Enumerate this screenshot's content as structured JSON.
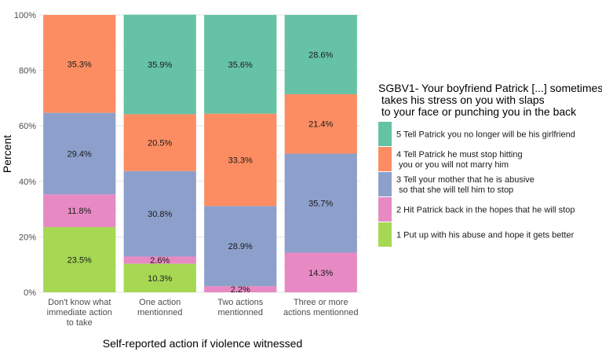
{
  "chart_data": {
    "type": "bar",
    "stacked": true,
    "ylabel": "Percent",
    "xlabel": "Self-reported action if violence witnessed",
    "ylim": [
      0,
      100
    ],
    "yticks": [
      "0%",
      "20%",
      "40%",
      "60%",
      "80%",
      "100%"
    ],
    "categories": [
      [
        "Don't know what",
        "immediate action",
        "to take"
      ],
      [
        "One action",
        "mentionned"
      ],
      [
        "Two actions",
        "mentionned"
      ],
      [
        "Three or more",
        "actions mentionned"
      ]
    ],
    "legend_title": [
      "SGBV1- Your boyfriend Patrick [...] sometimes",
      " takes his stress on you with slaps",
      " to your face or punching you in the back"
    ],
    "legend_position": "right",
    "grid": true,
    "series": [
      {
        "name": [
          "1 Put up with his abuse and hope it gets better"
        ],
        "color": "#a6d854",
        "values": [
          23.5,
          10.3,
          0,
          0
        ],
        "labels": [
          "23.5%",
          "10.3%",
          "",
          ""
        ]
      },
      {
        "name": [
          "2 Hit Patrick back in the hopes that he will stop"
        ],
        "color": "#e78ac3",
        "values": [
          11.8,
          2.6,
          2.2,
          14.3
        ],
        "labels": [
          "11.8%",
          "2.6%",
          "2.2%",
          "14.3%"
        ]
      },
      {
        "name": [
          "3 Tell your mother that he is abusive",
          " so that she will tell him to stop"
        ],
        "color": "#8da0cb",
        "values": [
          29.4,
          30.8,
          28.9,
          35.7
        ],
        "labels": [
          "29.4%",
          "30.8%",
          "28.9%",
          "35.7%"
        ]
      },
      {
        "name": [
          "4 Tell Patrick he must stop hitting",
          " you or you will not marry him"
        ],
        "color": "#fc8d62",
        "values": [
          35.3,
          20.5,
          33.3,
          21.4
        ],
        "labels": [
          "35.3%",
          "20.5%",
          "33.3%",
          "21.4%"
        ]
      },
      {
        "name": [
          "5 Tell Patrick you no longer will be his girlfriend"
        ],
        "color": "#66c2a5",
        "values": [
          0,
          35.9,
          35.6,
          28.6
        ],
        "labels": [
          "",
          "35.9%",
          "35.6%",
          "28.6%"
        ]
      }
    ]
  }
}
